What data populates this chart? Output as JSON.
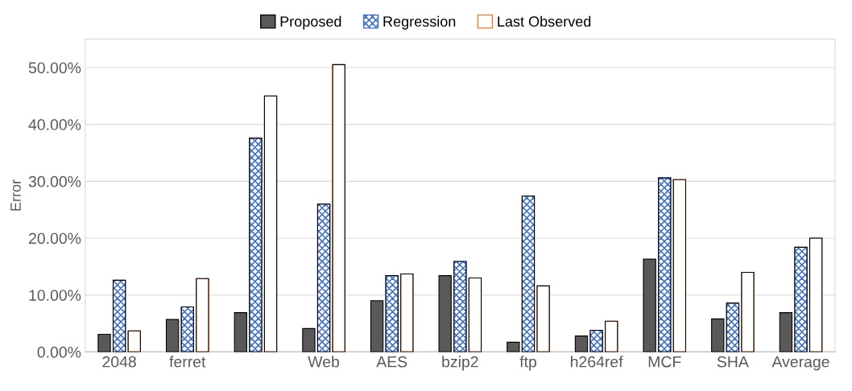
{
  "chart_data": {
    "type": "bar",
    "ylabel": "Error",
    "categories": [
      "2048",
      "ferret",
      null,
      "Web",
      "AES",
      "bzip2",
      "ftp",
      "h264ref",
      "MCF",
      "SHA",
      "Average"
    ],
    "series": [
      {
        "name": "Proposed",
        "color": "#595959",
        "values": [
          3.1,
          5.7,
          6.9,
          4.1,
          9.0,
          13.4,
          1.7,
          2.8,
          16.3,
          5.8,
          6.9
        ]
      },
      {
        "name": "Regression",
        "color": "#4472c4",
        "values": [
          12.6,
          7.9,
          37.6,
          26.0,
          13.4,
          15.9,
          27.4,
          3.8,
          30.6,
          8.6,
          18.4
        ]
      },
      {
        "name": "Last Observed",
        "color": "#ed7d31",
        "values": [
          3.7,
          12.9,
          45.0,
          50.5,
          13.7,
          13.0,
          11.6,
          5.4,
          30.3,
          14.0,
          20.0
        ]
      }
    ],
    "ylim": [
      0,
      55
    ],
    "yticks": [
      {
        "value": 0,
        "label": "0.00%"
      },
      {
        "value": 10,
        "label": "10.00%"
      },
      {
        "value": 20,
        "label": "20.00%"
      },
      {
        "value": 30,
        "label": "30.00%"
      },
      {
        "value": 40,
        "label": "40.00%"
      },
      {
        "value": 50,
        "label": "50.00%"
      }
    ],
    "grid": "y",
    "legend": "top"
  }
}
